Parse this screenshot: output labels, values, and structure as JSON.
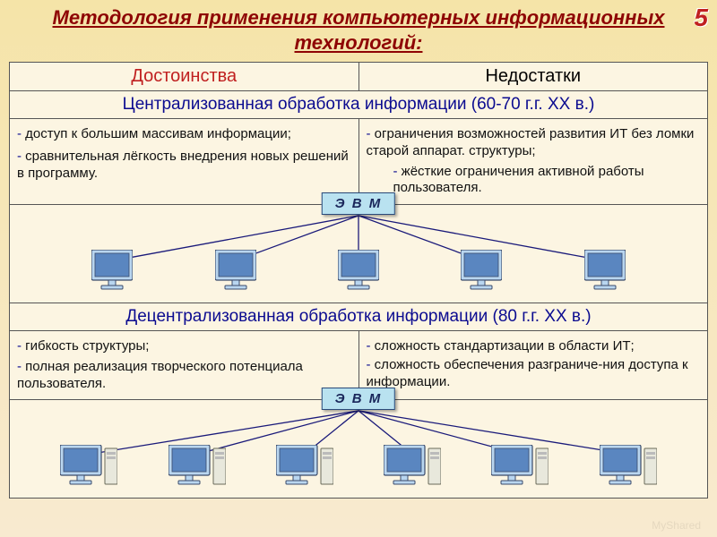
{
  "slide_number": "5",
  "title": "Методология применения компьютерных информационных технологий:",
  "header": {
    "pros": "Достоинства",
    "cons": "Недостатки"
  },
  "section1": {
    "title": "Централизованная обработка информации (60-70 г.г. XX в.)",
    "pros": [
      "доступ к большим массивам информации;",
      "сравнительная лёгкость внедрения новых решений в программу."
    ],
    "cons": [
      "ограничения возможностей развития ИТ без ломки старой аппарат. структуры;",
      "жёсткие ограничения активной работы пользователя."
    ],
    "evm_label": "Э В М",
    "diagram": {
      "type": "tree",
      "pc_count": 5,
      "has_towers": false,
      "box_bg": "#b9e2f0",
      "box_border": "#2a4a7a",
      "line_color": "#1a1a7a",
      "monitor_fill": "#b9d6f0",
      "monitor_stroke": "#3a4a6a",
      "screen_fill": "#5a86c0"
    }
  },
  "section2": {
    "title": "Децентрализованная обработка информации (80 г.г. XX в.)",
    "pros": [
      "гибкость структуры;",
      "полная реализация творческого потенциала пользователя."
    ],
    "cons": [
      "сложность стандартизации в области ИТ;",
      "сложность обеспечения разграниче-ния доступа к информации."
    ],
    "evm_label": "Э В М",
    "diagram": {
      "type": "tree",
      "pc_count": 6,
      "has_towers": true,
      "box_bg": "#b9e2f0",
      "box_border": "#2a4a7a",
      "line_color": "#1a1a7a",
      "monitor_fill": "#b9d6f0",
      "monitor_stroke": "#3a4a6a",
      "screen_fill": "#5a86c0",
      "tower_fill": "#e8e8dc",
      "tower_stroke": "#6a6a5a"
    }
  },
  "colors": {
    "title_color": "#8e0404",
    "section_color": "#0b0b90",
    "dash_color": "#0b0b90",
    "pros_header_color": "#c02020",
    "bg_top": "#f5e4a8",
    "bg_bottom": "#f8ead0",
    "cell_bg": "#fcf5e2",
    "border": "#555555"
  },
  "watermark": "MyShared"
}
